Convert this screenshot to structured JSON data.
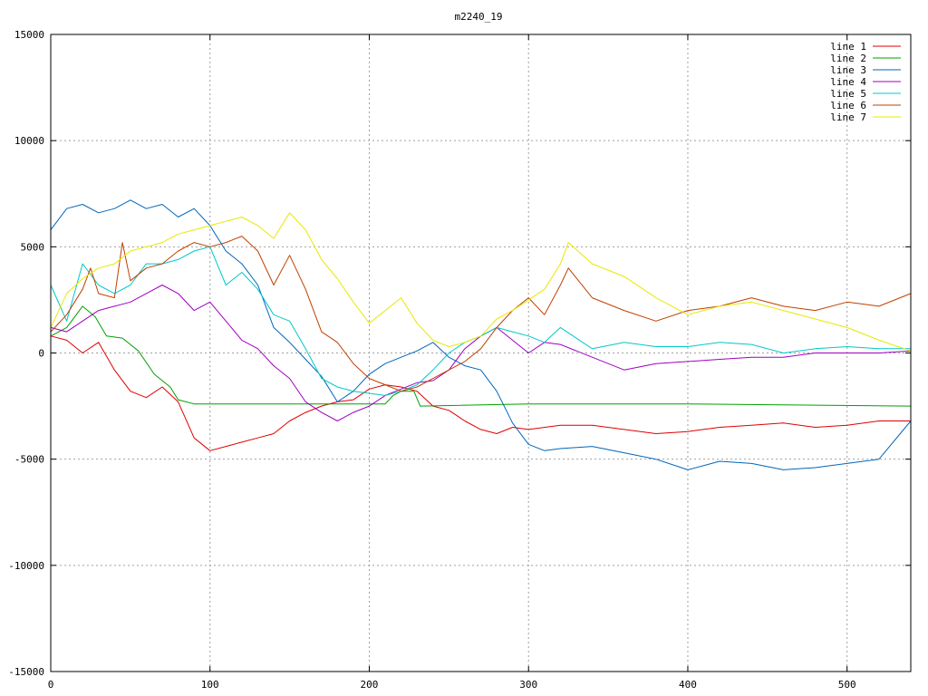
{
  "chart_data": {
    "type": "line",
    "title": "m2240_19",
    "xlabel": "",
    "ylabel": "",
    "xlim": [
      0,
      540
    ],
    "ylim": [
      -15000,
      15000
    ],
    "x_ticks": [
      0,
      100,
      200,
      300,
      400,
      500
    ],
    "y_ticks": [
      -15000,
      -10000,
      -5000,
      0,
      5000,
      10000,
      15000
    ],
    "grid": true,
    "legend_position": "top-right",
    "series": [
      {
        "name": "line 1",
        "color": "#e00000",
        "x": [
          0,
          10,
          20,
          30,
          40,
          50,
          60,
          70,
          80,
          90,
          100,
          110,
          120,
          130,
          140,
          150,
          160,
          170,
          180,
          190,
          200,
          210,
          220,
          230,
          240,
          250,
          260,
          270,
          280,
          290,
          300,
          320,
          340,
          360,
          380,
          400,
          420,
          440,
          460,
          480,
          500,
          520,
          540
        ],
        "y": [
          800,
          600,
          0,
          500,
          -800,
          -1800,
          -2100,
          -1600,
          -2300,
          -4000,
          -4600,
          -4400,
          -4200,
          -4000,
          -3800,
          -3200,
          -2800,
          -2500,
          -2300,
          -2200,
          -1700,
          -1500,
          -1600,
          -1800,
          -2500,
          -2700,
          -3200,
          -3600,
          -3800,
          -3500,
          -3600,
          -3400,
          -3400,
          -3600,
          -3800,
          -3700,
          -3500,
          -3400,
          -3300,
          -3500,
          -3400,
          -3200,
          -3200
        ]
      },
      {
        "name": "line 2",
        "color": "#00a000",
        "x": [
          0,
          10,
          20,
          28,
          35,
          45,
          55,
          65,
          75,
          80,
          90,
          100,
          150,
          200,
          210,
          215,
          220,
          228,
          232,
          300,
          400,
          540
        ],
        "y": [
          800,
          1200,
          2200,
          1700,
          800,
          700,
          100,
          -1000,
          -1600,
          -2200,
          -2400,
          -2400,
          -2400,
          -2400,
          -2400,
          -2000,
          -1800,
          -1800,
          -2500,
          -2400,
          -2400,
          -2500
        ]
      },
      {
        "name": "line 3",
        "color": "#0066bb",
        "x": [
          0,
          10,
          20,
          30,
          40,
          50,
          60,
          70,
          80,
          90,
          100,
          110,
          120,
          130,
          140,
          150,
          160,
          170,
          180,
          190,
          200,
          210,
          220,
          230,
          240,
          250,
          260,
          270,
          280,
          290,
          300,
          310,
          320,
          340,
          360,
          380,
          400,
          420,
          440,
          460,
          480,
          500,
          520,
          540
        ],
        "y": [
          5800,
          6800,
          7000,
          6600,
          6800,
          7200,
          6800,
          7000,
          6400,
          6800,
          6000,
          4800,
          4200,
          3200,
          1200,
          500,
          -300,
          -1100,
          -2300,
          -1800,
          -1000,
          -500,
          -200,
          100,
          500,
          -200,
          -600,
          -800,
          -1800,
          -3300,
          -4300,
          -4600,
          -4500,
          -4400,
          -4700,
          -5000,
          -5500,
          -5100,
          -5200,
          -5500,
          -5400,
          -5200,
          -5000,
          -3200
        ]
      },
      {
        "name": "line 4",
        "color": "#a000c0",
        "x": [
          0,
          10,
          20,
          30,
          40,
          50,
          60,
          70,
          80,
          90,
          100,
          110,
          120,
          130,
          140,
          150,
          160,
          170,
          180,
          190,
          200,
          210,
          220,
          230,
          240,
          250,
          260,
          270,
          280,
          290,
          300,
          310,
          320,
          340,
          360,
          380,
          400,
          420,
          440,
          460,
          480,
          500,
          520,
          540
        ],
        "y": [
          1200,
          1000,
          1500,
          2000,
          2200,
          2400,
          2800,
          3200,
          2800,
          2000,
          2400,
          1500,
          600,
          200,
          -600,
          -1200,
          -2300,
          -2800,
          -3200,
          -2800,
          -2500,
          -2000,
          -1700,
          -1400,
          -1300,
          -800,
          200,
          800,
          1200,
          600,
          0,
          500,
          400,
          -200,
          -800,
          -500,
          -400,
          -300,
          -200,
          -200,
          0,
          0,
          0,
          100
        ]
      },
      {
        "name": "line 5",
        "color": "#00c8c8",
        "x": [
          0,
          10,
          20,
          30,
          40,
          50,
          60,
          70,
          80,
          90,
          100,
          110,
          120,
          130,
          140,
          150,
          160,
          170,
          180,
          190,
          200,
          210,
          220,
          230,
          240,
          250,
          260,
          270,
          280,
          290,
          300,
          310,
          320,
          340,
          360,
          380,
          400,
          420,
          440,
          460,
          480,
          500,
          520,
          540
        ],
        "y": [
          3200,
          1500,
          4200,
          3200,
          2800,
          3200,
          4200,
          4200,
          4400,
          4800,
          5000,
          3200,
          3800,
          3000,
          1800,
          1500,
          200,
          -1200,
          -1600,
          -1800,
          -1900,
          -2000,
          -1800,
          -1500,
          -800,
          0,
          500,
          800,
          1200,
          1000,
          800,
          500,
          1200,
          200,
          500,
          300,
          300,
          500,
          400,
          0,
          200,
          300,
          200,
          200
        ]
      },
      {
        "name": "line 6",
        "color": "#c04000",
        "x": [
          0,
          10,
          20,
          25,
          30,
          40,
          45,
          50,
          60,
          70,
          80,
          90,
          100,
          110,
          120,
          130,
          140,
          150,
          160,
          170,
          180,
          190,
          200,
          210,
          220,
          230,
          240,
          250,
          260,
          270,
          280,
          290,
          300,
          310,
          320,
          325,
          340,
          360,
          380,
          400,
          420,
          440,
          460,
          480,
          500,
          520,
          540
        ],
        "y": [
          1000,
          1800,
          3000,
          4000,
          2800,
          2600,
          5200,
          3400,
          4000,
          4200,
          4800,
          5200,
          5000,
          5200,
          5500,
          4800,
          3200,
          4600,
          3000,
          1000,
          500,
          -500,
          -1200,
          -1500,
          -1800,
          -1600,
          -1200,
          -800,
          -400,
          200,
          1200,
          2000,
          2600,
          1800,
          3200,
          4000,
          2600,
          2000,
          1500,
          2000,
          2200,
          2600,
          2200,
          2000,
          2400,
          2200,
          2800
        ]
      },
      {
        "name": "line 7",
        "color": "#e8e800",
        "x": [
          0,
          10,
          20,
          30,
          40,
          50,
          60,
          70,
          80,
          90,
          100,
          110,
          120,
          130,
          140,
          150,
          160,
          170,
          180,
          190,
          200,
          210,
          220,
          230,
          240,
          250,
          260,
          270,
          280,
          290,
          300,
          310,
          320,
          325,
          340,
          360,
          380,
          400,
          420,
          440,
          460,
          480,
          500,
          520,
          540
        ],
        "y": [
          1200,
          2800,
          3500,
          4000,
          4200,
          4800,
          5000,
          5200,
          5600,
          5800,
          6000,
          6200,
          6400,
          6000,
          5400,
          6600,
          5800,
          4400,
          3500,
          2400,
          1400,
          2000,
          2600,
          1400,
          600,
          300,
          500,
          800,
          1600,
          2000,
          2500,
          3000,
          4200,
          5200,
          4200,
          3600,
          2600,
          1800,
          2200,
          2400,
          2000,
          1600,
          1200,
          600,
          100
        ]
      }
    ]
  }
}
